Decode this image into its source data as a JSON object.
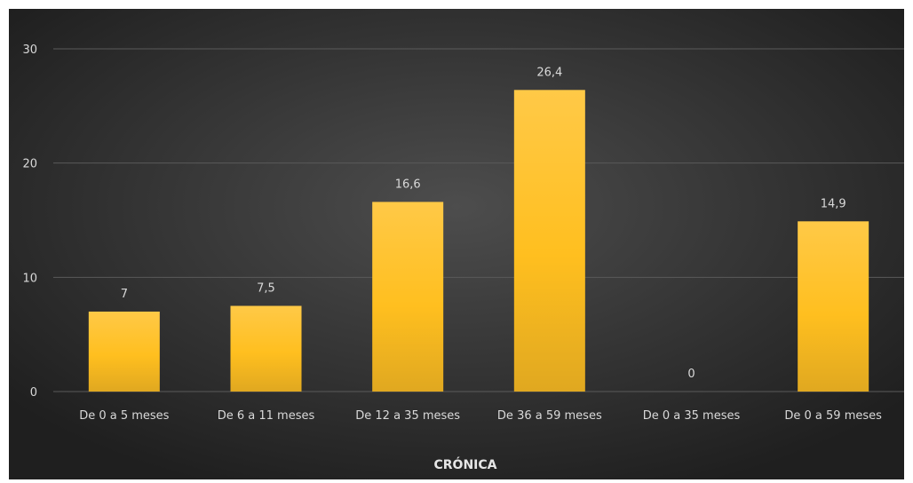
{
  "chart_data": {
    "type": "bar",
    "categories": [
      "De 0 a 5 meses",
      "De 6 a 11 meses",
      "De 12 a 35 meses",
      "De 36 a 59 meses",
      "De 0 a 35 meses",
      "De 0 a 59 meses"
    ],
    "values": [
      7,
      7.5,
      16.6,
      26.4,
      0,
      14.9
    ],
    "data_labels": [
      "7",
      "7,5",
      "16,6",
      "26,4",
      "0",
      "14,9"
    ],
    "y_ticks": [
      0,
      10,
      20,
      30
    ],
    "y_tick_labels": [
      "0",
      "10",
      "20",
      "30"
    ],
    "ylim": [
      0,
      30
    ],
    "xlabel": "CRÓNICA",
    "ylabel": "",
    "title": "",
    "grid": true,
    "legend": "none",
    "colors": {
      "bar_top": "#ffc947",
      "bar_mid": "#ffbf1f",
      "bar_bottom": "#e0a820",
      "background_center": "#4d4d4d",
      "background_edge": "#1f1f1f",
      "gridline": "#5a5a5a",
      "text": "#d9d9d9",
      "axis_title": "#e6e6e6"
    }
  }
}
